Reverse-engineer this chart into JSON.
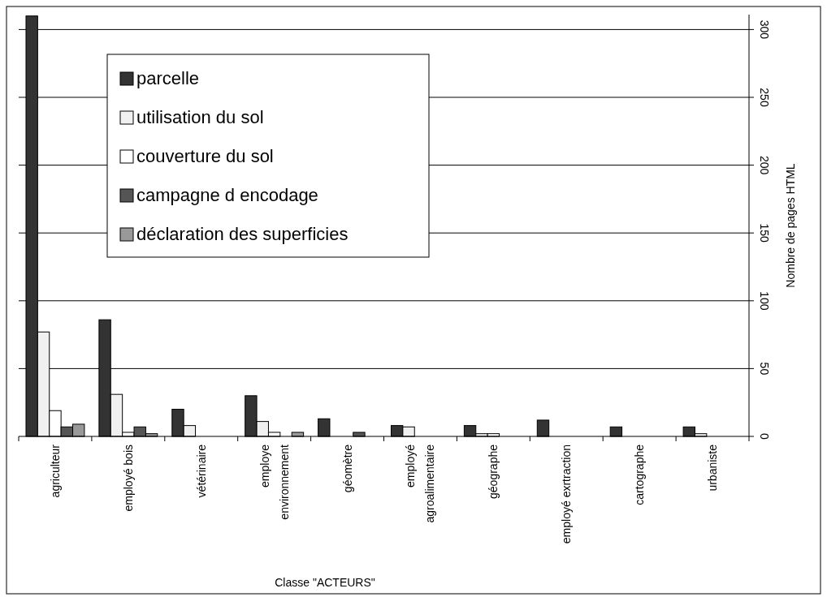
{
  "chart_data": {
    "type": "bar",
    "xlabel": "Classe \"ACTEURS\"",
    "ylabel": "Nombre de pages HTML",
    "categories": [
      "agriculteur",
      "employé bois",
      "vétérinaire",
      "employe environnement",
      "géomètre",
      "employé agroalimentaire",
      "géographe",
      "employé exrtraction",
      "cartographe",
      "urbaniste"
    ],
    "series": [
      {
        "name": "parcelle",
        "color": "#333333",
        "values": [
          310,
          86,
          20,
          30,
          13,
          8,
          8,
          12,
          7,
          7
        ]
      },
      {
        "name": "utilisation du sol",
        "color": "#f0f0f0",
        "values": [
          77,
          31,
          8,
          11,
          0,
          7,
          2,
          0,
          0,
          2
        ]
      },
      {
        "name": "couverture du sol",
        "color": "#ffffff",
        "values": [
          19,
          3,
          0,
          3,
          0,
          0,
          2,
          0,
          0,
          0
        ]
      },
      {
        "name": "campagne d encodage",
        "color": "#555555",
        "values": [
          7,
          7,
          0,
          0,
          3,
          0,
          0,
          0,
          0,
          0
        ]
      },
      {
        "name": "déclaration des superficies",
        "color": "#999999",
        "values": [
          9,
          2,
          0,
          3,
          0,
          0,
          0,
          0,
          0,
          0
        ]
      }
    ],
    "ylim": [
      0,
      311
    ],
    "yticks": [
      0,
      50,
      100,
      150,
      200,
      250,
      300
    ],
    "grid": "y",
    "legend": "top left"
  }
}
